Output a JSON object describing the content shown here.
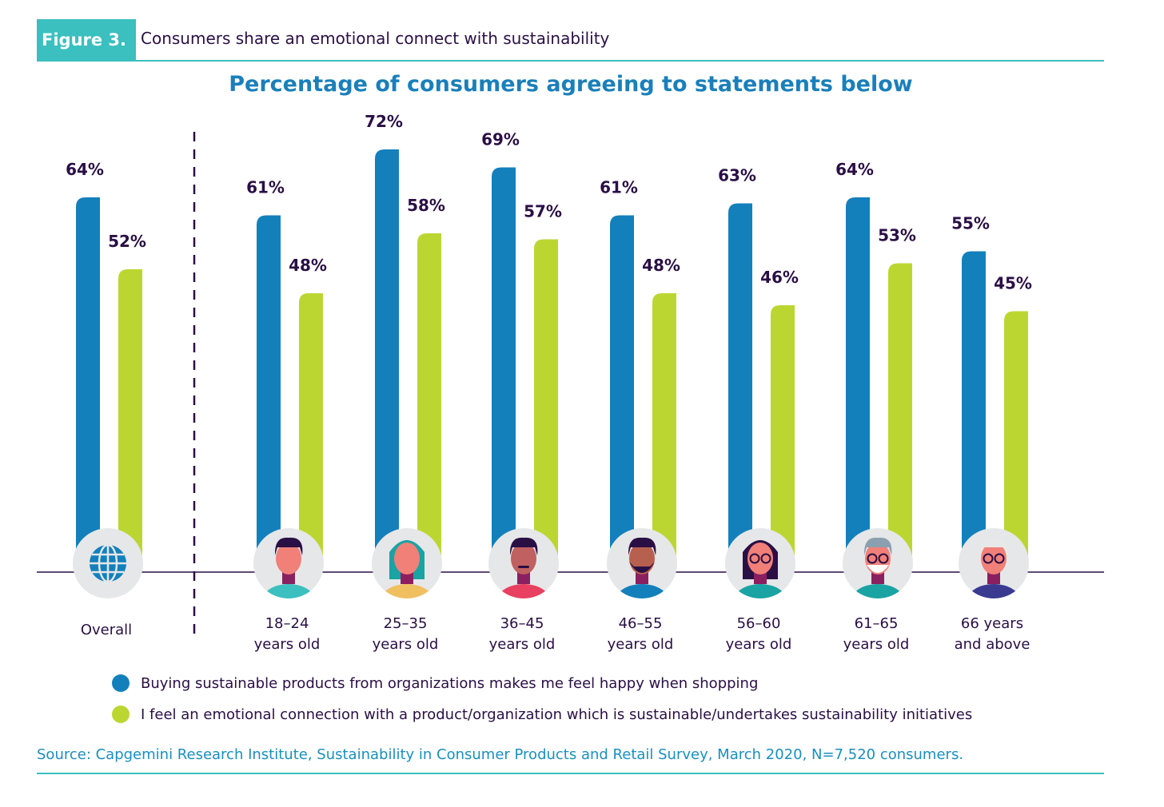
{
  "header": {
    "figure_label": "Figure 3.",
    "figure_title": "Consumers share an emotional connect with sustainability"
  },
  "colors": {
    "series1": "#1380bb",
    "series2": "#bcd631",
    "accent": "#3bbfbf",
    "text": "#2a0f45"
  },
  "chart_data": {
    "type": "bar",
    "title": "Percentage of consumers agreeing to statements below",
    "categories": [
      "Overall",
      "18–24 years old",
      "25–35 years old",
      "36–45 years old",
      "46–55 years old",
      "56–60 years old",
      "61–65 years old",
      "66 years and above"
    ],
    "category_lines": [
      [
        "Overall"
      ],
      [
        "18–24",
        "years old"
      ],
      [
        "25–35",
        "years old"
      ],
      [
        "36–45",
        "years old"
      ],
      [
        "46–55",
        "years old"
      ],
      [
        "56–60",
        "years old"
      ],
      [
        "61–65",
        "years old"
      ],
      [
        "66 years",
        "and above"
      ]
    ],
    "category_icons": [
      "globe-icon",
      "avatar-18-24-icon",
      "avatar-25-35-icon",
      "avatar-36-45-icon",
      "avatar-46-55-icon",
      "avatar-56-60-icon",
      "avatar-61-65-icon",
      "avatar-66-plus-icon"
    ],
    "series": [
      {
        "name": "Buying sustainable products from organizations makes me feel happy when shopping",
        "values": [
          64,
          61,
          72,
          69,
          61,
          63,
          64,
          55
        ],
        "labels": [
          "64%",
          "61%",
          "72%",
          "69%",
          "61%",
          "63%",
          "64%",
          "55%"
        ]
      },
      {
        "name": "I feel an emotional connection with a product/organization which is sustainable/undertakes sustainability initiatives",
        "values": [
          52,
          48,
          58,
          57,
          48,
          46,
          53,
          45
        ],
        "labels": [
          "52%",
          "48%",
          "58%",
          "57%",
          "48%",
          "46%",
          "53%",
          "45%"
        ]
      }
    ],
    "unit": "%",
    "ylim": [
      0,
      100
    ],
    "grid": false,
    "legend_position": "bottom"
  },
  "source": "Source: Capgemini Research Institute, Sustainability in Consumer Products and Retail Survey, March 2020, N=7,520 consumers."
}
